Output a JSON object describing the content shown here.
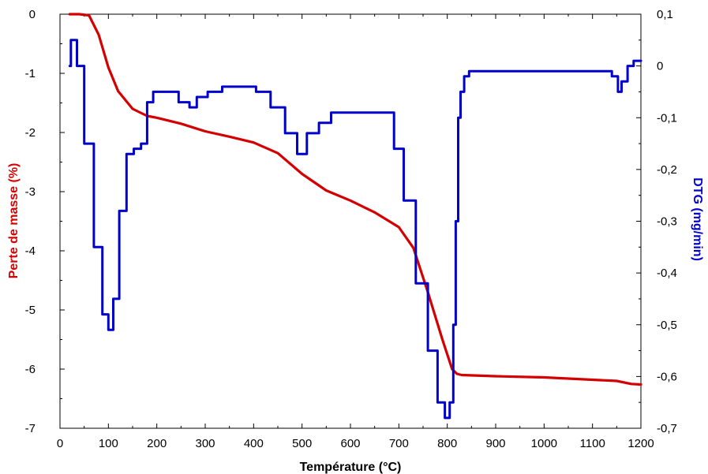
{
  "chart_data": {
    "type": "line",
    "title": "",
    "xlabel": "Température (°C)",
    "ylabel_left": "Perte de masse (%)",
    "ylabel_right": "DTG (mg/min)",
    "xlim": [
      0,
      1200
    ],
    "ylim_left": [
      -7,
      0
    ],
    "ylim_right": [
      -0.7,
      0.1
    ],
    "grid": false,
    "legend": "none",
    "x_ticks": [
      "0",
      "100",
      "200",
      "300",
      "400",
      "500",
      "600",
      "700",
      "800",
      "900",
      "1000",
      "1100",
      "1200"
    ],
    "y_left_ticks": [
      "0",
      "-1",
      "-2",
      "-3",
      "-4",
      "-5",
      "-6",
      "-7"
    ],
    "y_right_ticks": [
      "0,1",
      "0",
      "-0,1",
      "-0,2",
      "-0,3",
      "-0,4",
      "-0,5",
      "-0,6",
      "-0,7"
    ],
    "colors": {
      "mass": "#d40000",
      "dtg": "#0000cc",
      "left_axis_title": "#d40000",
      "right_axis_title": "#0000cc"
    },
    "series": [
      {
        "axis": "left",
        "color": "#d40000",
        "x": [
          20,
          40,
          60,
          80,
          100,
          120,
          150,
          180,
          200,
          250,
          300,
          350,
          400,
          450,
          500,
          550,
          600,
          650,
          700,
          730,
          760,
          790,
          810,
          820,
          830,
          900,
          1000,
          1100,
          1150,
          1180,
          1200
        ],
        "y": [
          0,
          0,
          -0.02,
          -0.35,
          -0.9,
          -1.3,
          -1.6,
          -1.72,
          -1.75,
          -1.85,
          -1.98,
          -2.07,
          -2.17,
          -2.35,
          -2.7,
          -2.98,
          -3.15,
          -3.35,
          -3.6,
          -3.95,
          -4.7,
          -5.5,
          -6.0,
          -6.08,
          -6.1,
          -6.12,
          -6.14,
          -6.18,
          -6.2,
          -6.25,
          -6.26
        ]
      },
      {
        "axis": "right",
        "color": "#0000cc",
        "x": [
          20,
          25,
          30,
          40,
          60,
          80,
          95,
          105,
          115,
          130,
          145,
          160,
          175,
          185,
          200,
          210,
          230,
          260,
          275,
          290,
          320,
          350,
          390,
          420,
          450,
          480,
          500,
          520,
          550,
          570,
          600,
          650,
          680,
          700,
          720,
          750,
          770,
          790,
          800,
          810,
          815,
          820,
          825,
          830,
          840,
          850,
          900,
          1000,
          1100,
          1130,
          1150,
          1155,
          1165,
          1180,
          1190,
          1200
        ],
        "y": [
          0.0,
          0.05,
          0.05,
          0.0,
          -0.15,
          -0.35,
          -0.48,
          -0.51,
          -0.45,
          -0.28,
          -0.17,
          -0.16,
          -0.15,
          -0.07,
          -0.05,
          -0.05,
          -0.05,
          -0.07,
          -0.08,
          -0.06,
          -0.05,
          -0.04,
          -0.04,
          -0.05,
          -0.08,
          -0.13,
          -0.17,
          -0.13,
          -0.11,
          -0.09,
          -0.09,
          -0.09,
          -0.09,
          -0.16,
          -0.26,
          -0.42,
          -0.55,
          -0.65,
          -0.68,
          -0.65,
          -0.5,
          -0.3,
          -0.1,
          -0.05,
          -0.02,
          -0.01,
          -0.01,
          -0.01,
          -0.01,
          -0.01,
          -0.02,
          -0.05,
          -0.03,
          0.0,
          0.01,
          0.01
        ]
      }
    ]
  }
}
